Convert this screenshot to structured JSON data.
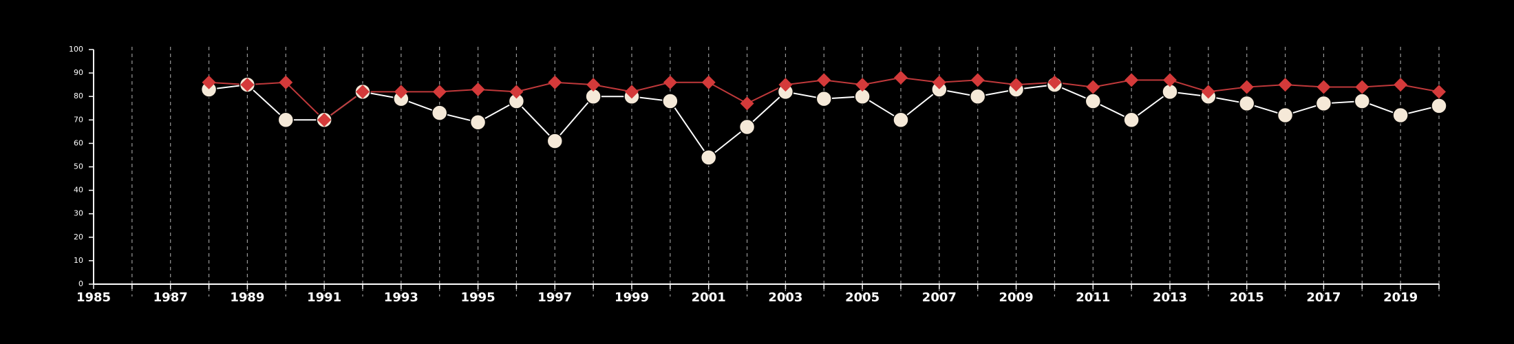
{
  "chart_data": {
    "type": "line",
    "title": "",
    "xlabel": "",
    "ylabel": "",
    "xlim": [
      1985,
      2020
    ],
    "ylim": [
      0,
      100
    ],
    "x_ticks": [
      1985,
      1987,
      1989,
      1991,
      1993,
      1995,
      1997,
      1999,
      2001,
      2003,
      2005,
      2007,
      2009,
      2011,
      2013,
      2015,
      2017,
      2019
    ],
    "y_ticks": [
      0,
      10,
      20,
      30,
      40,
      50,
      60,
      70,
      80,
      90,
      100
    ],
    "grid": "vertical dashed at every year",
    "legend": "none",
    "colors": {
      "background": "#000000",
      "axis": "#ffffff",
      "grid": "#9a9a9a",
      "series_circle_fill": "#f5e9d8",
      "series_circle_line": "#ffffff",
      "series_diamond": "#d43a3a",
      "series_diamond_line": "#c0393b"
    },
    "series": [
      {
        "marker": "circle",
        "x": [
          1988,
          1989,
          1990,
          1991,
          1992,
          1993,
          1994,
          1995,
          1996,
          1997,
          1998,
          1999,
          2000,
          2001,
          2002,
          2003,
          2004,
          2005,
          2006,
          2007,
          2008,
          2009,
          2010,
          2011,
          2012,
          2013,
          2014,
          2015,
          2016,
          2017,
          2018,
          2019,
          2020
        ],
        "values": [
          83,
          85,
          70,
          70,
          82,
          79,
          73,
          69,
          78,
          61,
          80,
          80,
          78,
          54,
          67,
          82,
          79,
          80,
          70,
          83,
          80,
          83,
          85,
          78,
          70,
          82,
          80,
          77,
          72,
          77,
          78,
          72,
          76
        ]
      },
      {
        "marker": "diamond",
        "x": [
          1988,
          1989,
          1990,
          1991,
          1992,
          1993,
          1994,
          1995,
          1996,
          1997,
          1998,
          1999,
          2000,
          2001,
          2002,
          2003,
          2004,
          2005,
          2006,
          2007,
          2008,
          2009,
          2010,
          2011,
          2012,
          2013,
          2014,
          2015,
          2016,
          2017,
          2018,
          2019,
          2020
        ],
        "values": [
          86,
          85,
          86,
          70,
          82,
          82,
          82,
          83,
          82,
          86,
          85,
          82,
          86,
          86,
          77,
          85,
          87,
          85,
          88,
          86,
          87,
          85,
          86,
          84,
          87,
          87,
          82,
          84,
          85,
          84,
          84,
          85,
          82
        ]
      }
    ]
  }
}
